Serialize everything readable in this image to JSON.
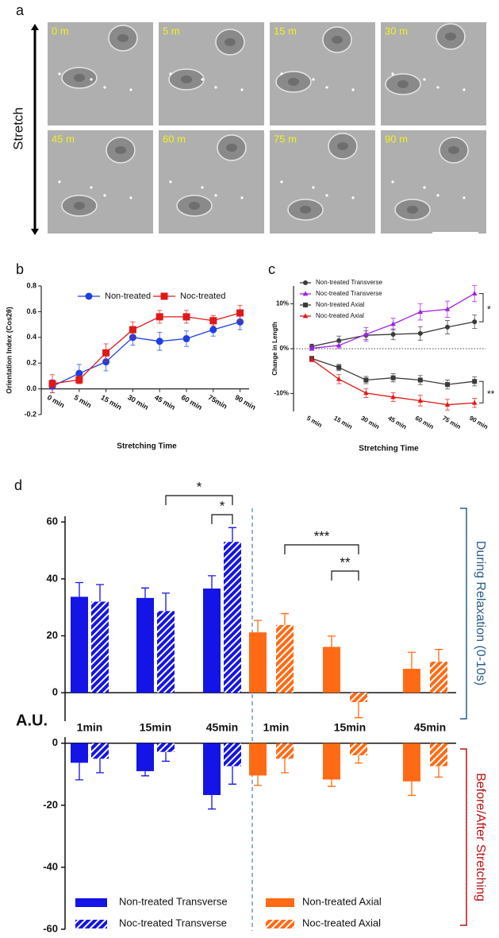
{
  "panel_a": {
    "panel": "a",
    "axis_label": "Stretch",
    "frames": [
      "0 m",
      "5 m",
      "15 m",
      "30 m",
      "45 m",
      "60 m",
      "75 m",
      "90 m"
    ]
  },
  "chart_data": [
    {
      "type": "line",
      "panel": "b",
      "xlabel": "Stretching Time",
      "ylabel": "Orientation Index (Cos2θ)",
      "categories": [
        "0 min",
        "5 min",
        "15 min",
        "30 min",
        "45 min",
        "60 min",
        "75min",
        "90 min"
      ],
      "ylim": [
        -0.2,
        0.8
      ],
      "yticks": [
        -0.2,
        {
          "value": 0,
          "label": "0.0"
        },
        0.2,
        0.4,
        0.6,
        0.8
      ],
      "series": [
        {
          "name": "Non-treated",
          "color": "#1f3fe0",
          "marker": "circle",
          "values": [
            0.02,
            0.12,
            0.21,
            0.4,
            0.37,
            0.39,
            0.46,
            0.52
          ],
          "errors": [
            0.05,
            0.07,
            0.07,
            0.06,
            0.07,
            0.06,
            0.05,
            0.06
          ]
        },
        {
          "name": "Noc-treated",
          "color": "#e01818",
          "marker": "square",
          "values": [
            0.04,
            0.07,
            0.28,
            0.46,
            0.56,
            0.56,
            0.53,
            0.59
          ],
          "errors": [
            0.07,
            0.03,
            0.07,
            0.06,
            0.05,
            0.05,
            0.04,
            0.06
          ]
        }
      ]
    },
    {
      "type": "line",
      "panel": "c",
      "xlabel": "Stretching Time",
      "ylabel": "Change in Length",
      "categories": [
        "5 min",
        "15 min",
        "30 min",
        "45 min",
        "60 min",
        "75 min",
        "90 min"
      ],
      "ylim": [
        -14,
        14
      ],
      "yticks": [
        {
          "value": -10,
          "label": "-10%"
        },
        {
          "value": 0,
          "label": "0%"
        },
        {
          "value": 10,
          "label": "10%"
        }
      ],
      "annotations": [
        "*",
        "**"
      ],
      "series": [
        {
          "name": "Non-treated Transverse",
          "color": "#3a3a3a",
          "marker": "circle",
          "values": [
            0.5,
            1.8,
            3.0,
            3.2,
            3.4,
            4.8,
            6.0
          ],
          "errors": [
            0.5,
            1.0,
            1.0,
            1.2,
            1.5,
            1.5,
            1.5
          ]
        },
        {
          "name": "Noc-treated Transverse",
          "color": "#a020e0",
          "marker": "triangle",
          "values": [
            0.1,
            0.7,
            3.2,
            5.5,
            8.2,
            8.8,
            12.3
          ],
          "errors": [
            0.5,
            0.7,
            1.5,
            1.3,
            1.8,
            1.8,
            1.8
          ]
        },
        {
          "name": "Non-treated Axial",
          "color": "#3a3a3a",
          "marker": "square",
          "values": [
            -2.2,
            -4.2,
            -7.0,
            -6.5,
            -7.0,
            -8.0,
            -7.3
          ],
          "errors": [
            0.5,
            0.7,
            0.8,
            0.9,
            1.0,
            1.0,
            1.0
          ]
        },
        {
          "name": "Noc-treated Axial",
          "color": "#e01818",
          "marker": "triangle",
          "values": [
            -2.4,
            -6.8,
            -9.9,
            -10.8,
            -11.6,
            -12.5,
            -12.1
          ],
          "errors": [
            0.5,
            1.0,
            1.0,
            1.0,
            1.2,
            1.2,
            1.0
          ]
        }
      ]
    },
    {
      "type": "bar",
      "panel": "d",
      "ylabel": "A.U.",
      "section_labels": [
        "During Relaxation (0-10s)",
        "Before/After Stretching"
      ],
      "categories": [
        "1min",
        "15min",
        "45min",
        "1min",
        "15min",
        "45min"
      ],
      "ylim": [
        -10,
        62
      ],
      "yticks": [
        0,
        20,
        40,
        60
      ],
      "y2lim": [
        -60,
        2
      ],
      "y2ticks": [
        -60,
        -40,
        -20,
        0
      ],
      "annotations": [
        "*",
        "*",
        "***",
        "**"
      ],
      "series": [
        {
          "name": "Non-treated  Transverse",
          "color": "#1414e6",
          "hatch": false,
          "values": [
            33.7,
            33.3,
            36.6,
            null,
            null,
            null
          ],
          "errors": [
            5.0,
            3.5,
            4.5,
            null,
            null,
            null
          ],
          "stretching_values": [
            -6.3,
            -9.0,
            -16.7,
            null,
            null,
            null
          ],
          "stretching_errors": [
            5.5,
            1.5,
            4.5,
            null,
            null,
            null
          ]
        },
        {
          "name": "Noc-treated  Transverse",
          "color": "#1414e6",
          "hatch": true,
          "values": [
            32.0,
            28.7,
            53.0,
            null,
            null,
            null
          ],
          "errors": [
            6.0,
            6.3,
            5.0,
            null,
            null,
            null
          ],
          "stretching_values": [
            -5.0,
            -2.8,
            -7.4,
            null,
            null,
            null
          ],
          "stretching_errors": [
            4.5,
            3.0,
            5.8,
            null,
            null,
            null
          ]
        },
        {
          "name": "Non-treated Axial",
          "color": "#ff6a14",
          "hatch": false,
          "values": [
            null,
            null,
            null,
            21.2,
            16.1,
            8.4
          ],
          "errors": [
            null,
            null,
            null,
            4.2,
            3.8,
            5.8
          ],
          "stretching_values": [
            null,
            null,
            null,
            -10.4,
            -11.7,
            -12.3
          ],
          "stretching_errors": [
            null,
            null,
            null,
            3.2,
            2.2,
            4.5
          ]
        },
        {
          "name": "Noc-treated Axial",
          "color": "#ff6a14",
          "hatch": true,
          "values": [
            null,
            null,
            null,
            23.8,
            -3.3,
            10.9
          ],
          "errors": [
            null,
            null,
            null,
            4.0,
            5.5,
            4.3
          ],
          "stretching_values": [
            null,
            null,
            null,
            -5.0,
            -3.9,
            -7.4
          ],
          "stretching_errors": [
            null,
            null,
            null,
            4.5,
            2.5,
            3.5
          ]
        }
      ]
    }
  ]
}
